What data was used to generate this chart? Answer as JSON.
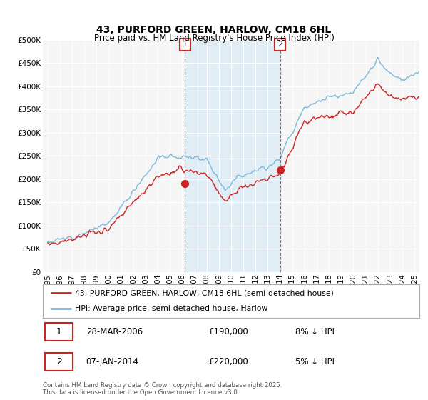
{
  "title": "43, PURFORD GREEN, HARLOW, CM18 6HL",
  "subtitle": "Price paid vs. HM Land Registry's House Price Index (HPI)",
  "ylabel_ticks": [
    "£0",
    "£50K",
    "£100K",
    "£150K",
    "£200K",
    "£250K",
    "£300K",
    "£350K",
    "£400K",
    "£450K",
    "£500K"
  ],
  "ytick_values": [
    0,
    50000,
    100000,
    150000,
    200000,
    250000,
    300000,
    350000,
    400000,
    450000,
    500000
  ],
  "xlim_start": 1994.6,
  "xlim_end": 2025.4,
  "ylim": [
    0,
    500000
  ],
  "hpi_color": "#7ab8d9",
  "price_color": "#cc2222",
  "shade_color": "#d0e8f5",
  "sale1_date": 2006.22,
  "sale1_price": 190000,
  "sale2_date": 2014.02,
  "sale2_price": 220000,
  "legend_line1": "43, PURFORD GREEN, HARLOW, CM18 6HL (semi-detached house)",
  "legend_line2": "HPI: Average price, semi-detached house, Harlow",
  "annotation1_date_str": "28-MAR-2006",
  "annotation1_price_str": "£190,000",
  "annotation1_hpi_str": "8% ↓ HPI",
  "annotation2_date_str": "07-JAN-2014",
  "annotation2_price_str": "£220,000",
  "annotation2_hpi_str": "5% ↓ HPI",
  "footer": "Contains HM Land Registry data © Crown copyright and database right 2025.\nThis data is licensed under the Open Government Licence v3.0.",
  "background_color": "#ffffff",
  "plot_bg_color": "#f5f5f5"
}
